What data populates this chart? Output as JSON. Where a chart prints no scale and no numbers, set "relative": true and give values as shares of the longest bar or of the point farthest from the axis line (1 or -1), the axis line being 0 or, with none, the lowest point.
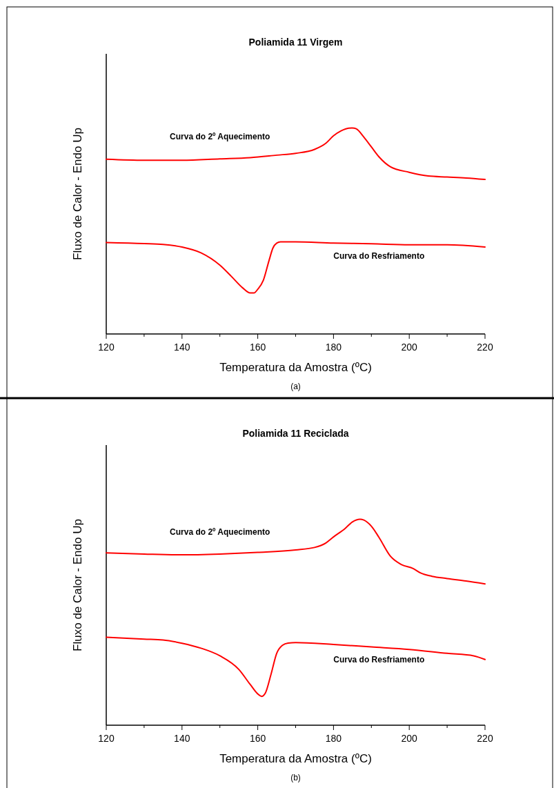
{
  "chart_data": [
    {
      "type": "line",
      "title": "Poliamida 11 Virgem",
      "xlabel": "Temperatura da Amostra (ºC)",
      "ylabel": "Fluxo de Calor - Endo Up",
      "relative": true,
      "annotations": [
        "(a)"
      ],
      "xlim": [
        120,
        220
      ],
      "xticks": [
        120,
        {
          "value": 130,
          "label": null
        },
        140,
        {
          "value": 150,
          "label": null
        },
        160,
        {
          "value": 170,
          "label": null
        },
        180,
        {
          "value": 190,
          "label": null
        },
        200,
        {
          "value": 210,
          "label": null
        },
        220
      ],
      "series": [
        {
          "name": "Curva do 2º Aquecimento",
          "color": "#ff0000",
          "x": [
            120,
            130,
            140,
            150,
            158,
            165,
            170,
            175,
            178,
            180,
            182,
            184,
            185,
            186,
            188,
            190,
            192,
            195,
            200,
            205,
            210,
            215,
            220
          ],
          "values": [
            0.848,
            0.843,
            0.843,
            0.85,
            0.856,
            0.868,
            0.877,
            0.896,
            0.926,
            0.962,
            0.986,
            0.999,
            1,
            0.996,
            0.956,
            0.908,
            0.86,
            0.812,
            0.785,
            0.767,
            0.762,
            0.757,
            0.75
          ]
        },
        {
          "name": "Curva do Resfriamento",
          "color": "#ff0000",
          "x": [
            120,
            130,
            135,
            140,
            145,
            150,
            153,
            156,
            158,
            159,
            160,
            161.5,
            163,
            164,
            165,
            166,
            170,
            180,
            190,
            200,
            210,
            220
          ],
          "values": [
            0.444,
            0.439,
            0.435,
            0.422,
            0.394,
            0.334,
            0.28,
            0.224,
            0.199,
            0.199,
            0.217,
            0.262,
            0.358,
            0.417,
            0.441,
            0.447,
            0.447,
            0.441,
            0.438,
            0.433,
            0.433,
            0.422
          ]
        }
      ]
    },
    {
      "type": "line",
      "title": "Poliamida 11 Reciclada",
      "xlabel": "Temperatura da Amostra (ºC)",
      "ylabel": "Fluxo de Calor - Endo Up",
      "relative": true,
      "annotations": [
        "(b)"
      ],
      "xlim": [
        120,
        220
      ],
      "xticks": [
        120,
        {
          "value": 130,
          "label": null
        },
        140,
        {
          "value": 150,
          "label": null
        },
        160,
        {
          "value": 170,
          "label": null
        },
        180,
        {
          "value": 190,
          "label": null
        },
        200,
        {
          "value": 210,
          "label": null
        },
        220
      ],
      "series": [
        {
          "name": "Curva do 2º Aquecimento",
          "color": "#ff0000",
          "x": [
            120,
            130,
            140,
            150,
            160,
            170,
            175,
            178,
            180,
            183,
            185,
            187,
            188,
            190,
            192,
            195,
            198,
            201,
            203,
            206,
            210,
            215,
            220
          ],
          "values": [
            0.837,
            0.831,
            0.827,
            0.831,
            0.839,
            0.851,
            0.863,
            0.885,
            0.914,
            0.954,
            0.987,
            1,
            0.996,
            0.966,
            0.912,
            0.821,
            0.779,
            0.761,
            0.739,
            0.723,
            0.712,
            0.7,
            0.686
          ]
        },
        {
          "name": "Curva do Resfriamento",
          "color": "#ff0000",
          "x": [
            120,
            130,
            135,
            140,
            145,
            150,
            155,
            158,
            160,
            161,
            162,
            163.5,
            165,
            166.5,
            168,
            170,
            180,
            190,
            200,
            210,
            217,
            220
          ],
          "values": [
            0.427,
            0.418,
            0.414,
            0.398,
            0.374,
            0.337,
            0.271,
            0.198,
            0.152,
            0.14,
            0.156,
            0.247,
            0.349,
            0.388,
            0.399,
            0.401,
            0.392,
            0.38,
            0.368,
            0.349,
            0.337,
            0.319
          ]
        }
      ]
    }
  ]
}
